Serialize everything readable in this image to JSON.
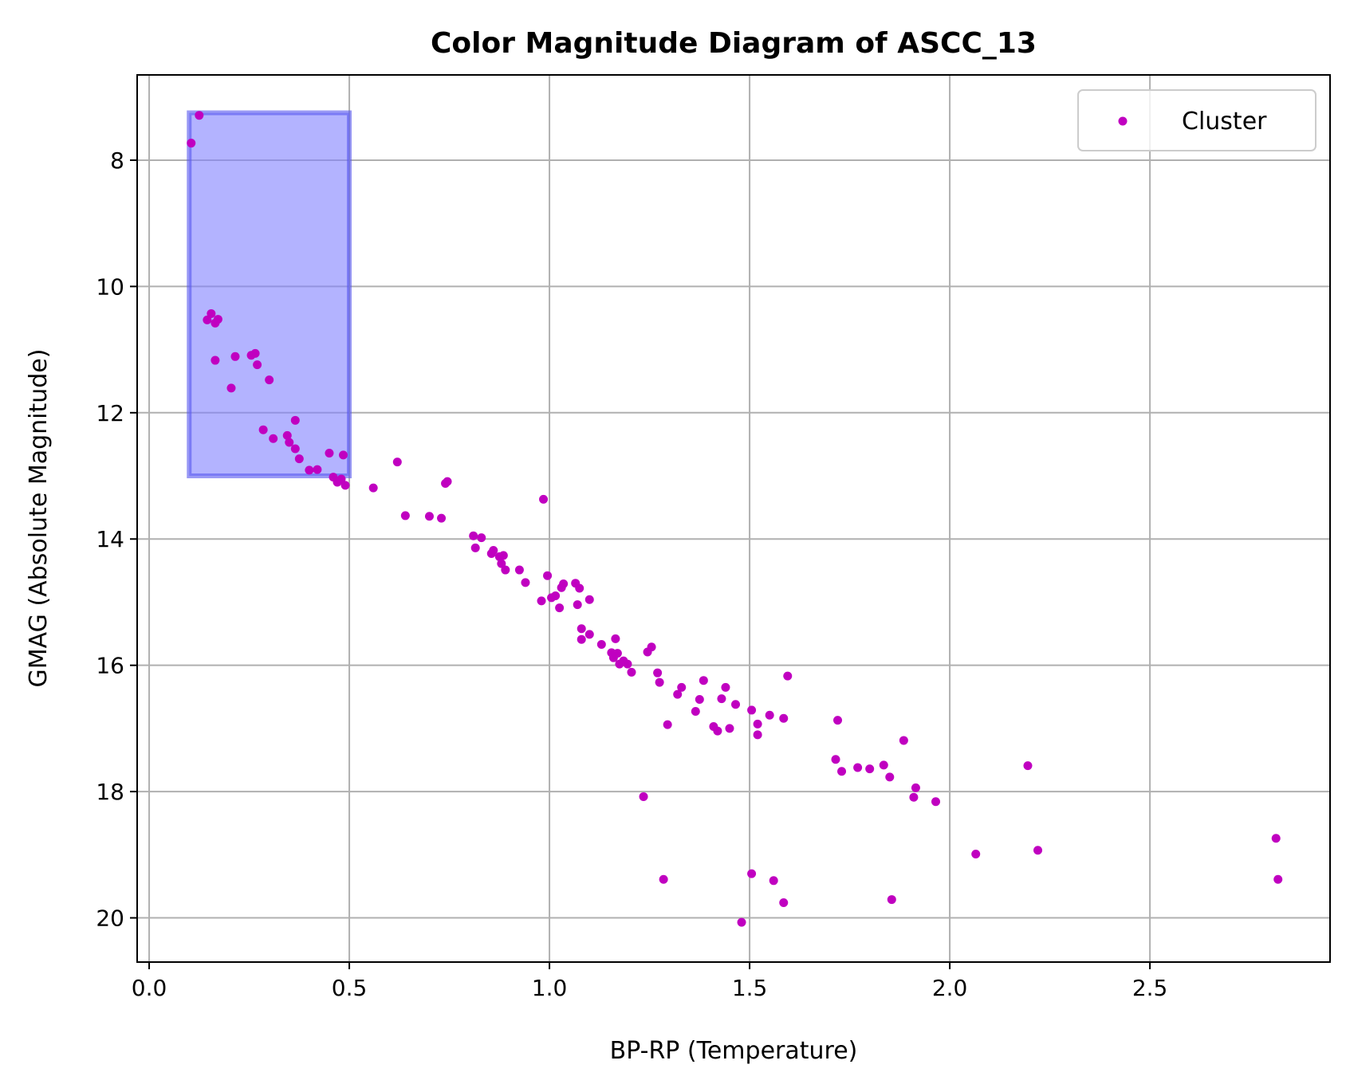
{
  "chart_data": {
    "type": "scatter",
    "title": "Color Magnitude Diagram of ASCC_13",
    "xlabel": "BP-RP (Temperature)",
    "ylabel": "GMAG (Absolute Magnitude)",
    "xlim": [
      -0.03,
      2.95
    ],
    "ylim": [
      20.7,
      6.65
    ],
    "y_inverted": true,
    "grid": true,
    "legend_position": "top-right",
    "x_ticks": [
      0.0,
      0.5,
      1.0,
      1.5,
      2.0,
      2.5
    ],
    "x_tick_labels": [
      "0.0",
      "0.5",
      "1.0",
      "1.5",
      "2.0",
      "2.5"
    ],
    "y_ticks": [
      8,
      10,
      12,
      14,
      16,
      18,
      20
    ],
    "y_tick_labels": [
      "8",
      "10",
      "12",
      "14",
      "16",
      "18",
      "20"
    ],
    "colors": {
      "points": "#c000c0",
      "highlight_fill": "#8080ff",
      "highlight_edge": "#5555ee",
      "grid": "#b0b0b0"
    },
    "highlight_region": {
      "x": [
        0.1,
        0.5
      ],
      "y": [
        7.25,
        13.0
      ]
    },
    "series": [
      {
        "name": "Cluster",
        "points": [
          [
            0.105,
            7.73
          ],
          [
            0.125,
            7.29
          ],
          [
            0.145,
            10.53
          ],
          [
            0.155,
            10.43
          ],
          [
            0.165,
            10.58
          ],
          [
            0.172,
            10.52
          ],
          [
            0.165,
            11.17
          ],
          [
            0.205,
            11.61
          ],
          [
            0.215,
            11.11
          ],
          [
            0.255,
            11.09
          ],
          [
            0.265,
            11.06
          ],
          [
            0.27,
            11.24
          ],
          [
            0.3,
            11.48
          ],
          [
            0.285,
            12.27
          ],
          [
            0.31,
            12.41
          ],
          [
            0.345,
            12.36
          ],
          [
            0.35,
            12.47
          ],
          [
            0.365,
            12.12
          ],
          [
            0.365,
            12.57
          ],
          [
            0.375,
            12.73
          ],
          [
            0.4,
            12.91
          ],
          [
            0.42,
            12.9
          ],
          [
            0.45,
            12.64
          ],
          [
            0.46,
            13.02
          ],
          [
            0.47,
            13.1
          ],
          [
            0.48,
            13.05
          ],
          [
            0.485,
            12.67
          ],
          [
            0.49,
            13.15
          ],
          [
            0.56,
            13.19
          ],
          [
            0.62,
            12.78
          ],
          [
            0.64,
            13.63
          ],
          [
            0.7,
            13.64
          ],
          [
            0.73,
            13.67
          ],
          [
            0.74,
            13.12
          ],
          [
            0.745,
            13.09
          ],
          [
            0.81,
            13.95
          ],
          [
            0.815,
            14.14
          ],
          [
            0.83,
            13.98
          ],
          [
            0.855,
            14.23
          ],
          [
            0.86,
            14.18
          ],
          [
            0.875,
            14.28
          ],
          [
            0.88,
            14.39
          ],
          [
            0.885,
            14.26
          ],
          [
            0.89,
            14.49
          ],
          [
            0.925,
            14.49
          ],
          [
            0.94,
            14.69
          ],
          [
            0.985,
            13.37
          ],
          [
            0.98,
            14.98
          ],
          [
            0.995,
            14.58
          ],
          [
            1.005,
            14.93
          ],
          [
            1.015,
            14.9
          ],
          [
            1.025,
            15.09
          ],
          [
            1.03,
            14.77
          ],
          [
            1.035,
            14.71
          ],
          [
            1.065,
            14.7
          ],
          [
            1.07,
            15.04
          ],
          [
            1.075,
            14.78
          ],
          [
            1.08,
            15.42
          ],
          [
            1.08,
            15.59
          ],
          [
            1.1,
            14.96
          ],
          [
            1.1,
            15.51
          ],
          [
            1.13,
            15.67
          ],
          [
            1.155,
            15.8
          ],
          [
            1.16,
            15.88
          ],
          [
            1.165,
            15.58
          ],
          [
            1.17,
            15.81
          ],
          [
            1.175,
            15.98
          ],
          [
            1.185,
            15.93
          ],
          [
            1.195,
            15.98
          ],
          [
            1.205,
            16.11
          ],
          [
            1.235,
            18.08
          ],
          [
            1.245,
            15.79
          ],
          [
            1.255,
            15.71
          ],
          [
            1.27,
            16.12
          ],
          [
            1.275,
            16.27
          ],
          [
            1.285,
            19.39
          ],
          [
            1.295,
            16.94
          ],
          [
            1.32,
            16.46
          ],
          [
            1.33,
            16.35
          ],
          [
            1.365,
            16.73
          ],
          [
            1.375,
            16.54
          ],
          [
            1.385,
            16.24
          ],
          [
            1.41,
            16.97
          ],
          [
            1.42,
            17.04
          ],
          [
            1.43,
            16.53
          ],
          [
            1.44,
            16.35
          ],
          [
            1.45,
            17.0
          ],
          [
            1.465,
            16.62
          ],
          [
            1.48,
            20.07
          ],
          [
            1.505,
            16.71
          ],
          [
            1.505,
            19.3
          ],
          [
            1.52,
            16.93
          ],
          [
            1.52,
            17.1
          ],
          [
            1.55,
            16.79
          ],
          [
            1.56,
            19.41
          ],
          [
            1.585,
            16.84
          ],
          [
            1.585,
            19.76
          ],
          [
            1.595,
            16.17
          ],
          [
            1.715,
            17.49
          ],
          [
            1.72,
            16.87
          ],
          [
            1.73,
            17.68
          ],
          [
            1.77,
            17.62
          ],
          [
            1.8,
            17.64
          ],
          [
            1.835,
            17.58
          ],
          [
            1.85,
            17.77
          ],
          [
            1.855,
            19.71
          ],
          [
            1.885,
            17.19
          ],
          [
            1.91,
            18.09
          ],
          [
            1.915,
            17.94
          ],
          [
            1.965,
            18.16
          ],
          [
            2.065,
            18.99
          ],
          [
            2.195,
            17.59
          ],
          [
            2.22,
            18.93
          ],
          [
            2.815,
            18.74
          ],
          [
            2.82,
            19.39
          ]
        ]
      }
    ]
  }
}
